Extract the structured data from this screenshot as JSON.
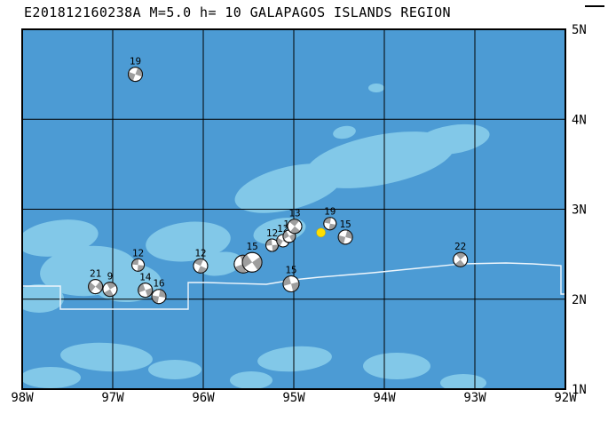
{
  "title": "E201812160238A M=5.0 h= 10 GALAPAGOS ISLANDS REGION",
  "map": {
    "region_name": "GALAPAGOS ISLANDS REGION",
    "bounds": {
      "lon_min": -98,
      "lon_max": -92,
      "lat_min": 1,
      "lat_max": 5
    },
    "lon_ticks": [
      {
        "label": "98W",
        "lon": -98
      },
      {
        "label": "97W",
        "lon": -97
      },
      {
        "label": "96W",
        "lon": -96
      },
      {
        "label": "95W",
        "lon": -95
      },
      {
        "label": "94W",
        "lon": -94
      },
      {
        "label": "93W",
        "lon": -93
      },
      {
        "label": "92W",
        "lon": -92
      }
    ],
    "lat_ticks": [
      {
        "label": "5N",
        "lat": 5
      },
      {
        "label": "4N",
        "lat": 4
      },
      {
        "label": "3N",
        "lat": 3
      },
      {
        "label": "2N",
        "lat": 2
      },
      {
        "label": "1N",
        "lat": 1
      }
    ],
    "colors": {
      "ocean": "#4c9bd4",
      "shallow": "#82c8e8",
      "boundary": "#eef6fc",
      "grid": "#000000",
      "frame": "#000000",
      "ball_fill": "#ffffff",
      "ball_shade": "#9e9e9e",
      "dot": "#ffdf00"
    }
  },
  "events": [
    {
      "label": "19",
      "lon": -96.75,
      "lat": 4.5,
      "r": 8,
      "rot": 20
    },
    {
      "label": "12",
      "lon": -96.72,
      "lat": 2.38,
      "r": 7,
      "rot": 95
    },
    {
      "label": "21",
      "lon": -97.19,
      "lat": 2.14,
      "r": 8,
      "rot": 40
    },
    {
      "label": "9",
      "lon": -97.03,
      "lat": 2.11,
      "r": 8,
      "rot": 150
    },
    {
      "label": "14",
      "lon": -96.64,
      "lat": 2.1,
      "r": 8,
      "rot": 70
    },
    {
      "label": "16",
      "lon": -96.49,
      "lat": 2.03,
      "r": 8,
      "rot": 10
    },
    {
      "label": "12",
      "lon": -96.03,
      "lat": 2.37,
      "r": 8,
      "rot": 115
    },
    {
      "label": "",
      "lon": -95.56,
      "lat": 2.39,
      "r": 10,
      "rot": 160
    },
    {
      "label": "15",
      "lon": -95.46,
      "lat": 2.41,
      "r": 11,
      "rot": 55
    },
    {
      "label": "12",
      "lon": -95.24,
      "lat": 2.6,
      "r": 7,
      "rot": 85
    },
    {
      "label": "12",
      "lon": -95.12,
      "lat": 2.65,
      "r": 7,
      "rot": 30
    },
    {
      "label": "12",
      "lon": -95.05,
      "lat": 2.7,
      "r": 7,
      "rot": 60
    },
    {
      "label": "13",
      "lon": -94.99,
      "lat": 2.81,
      "r": 8,
      "rot": 130
    },
    {
      "label": "19",
      "lon": -94.6,
      "lat": 2.84,
      "r": 7,
      "rot": 100
    },
    {
      "label": "15",
      "lon": -94.43,
      "lat": 2.69,
      "r": 8,
      "rot": 15
    },
    {
      "label": "15",
      "lon": -95.03,
      "lat": 2.17,
      "r": 9,
      "rot": 75
    },
    {
      "label": "22",
      "lon": -93.16,
      "lat": 2.44,
      "r": 8,
      "rot": 140
    }
  ],
  "special_marker": {
    "type": "epicenter-dot",
    "lon": -94.7,
    "lat": 2.74,
    "r": 5
  }
}
